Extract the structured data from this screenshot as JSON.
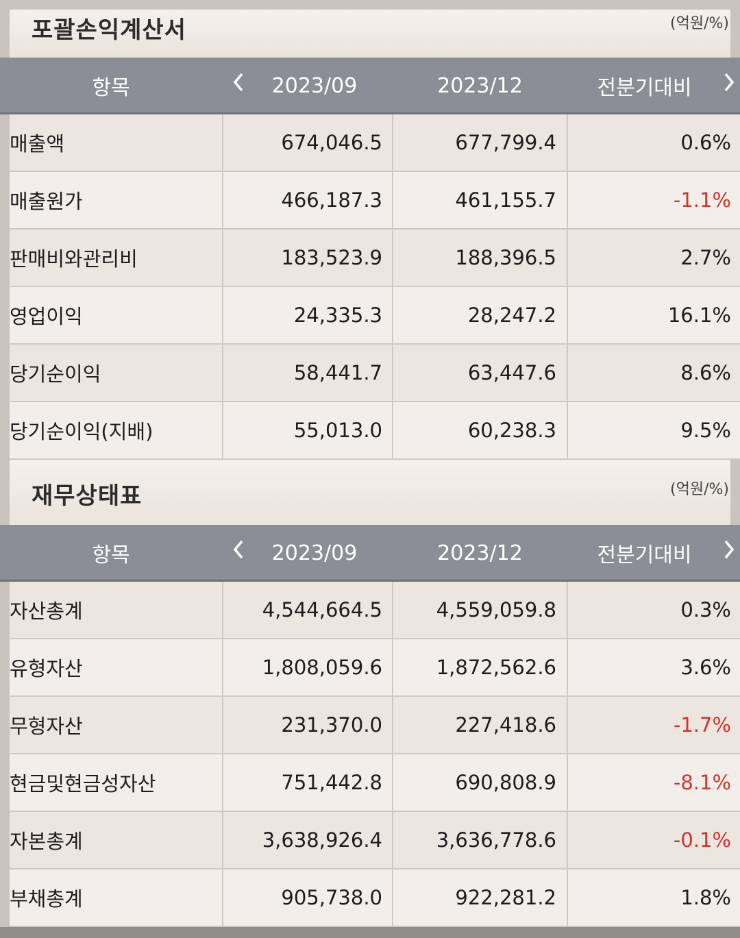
{
  "income": {
    "title": "포괄손익계산서",
    "unit": "(억원/%)",
    "headers": {
      "item": "항목",
      "p1": "2023/09",
      "p2": "2023/12",
      "cmp": "전분기대비"
    },
    "rows": [
      {
        "label": "매출액",
        "v1": "674,046.5",
        "v2": "677,799.4",
        "chg": "0.6%"
      },
      {
        "label": "매출원가",
        "v1": "466,187.3",
        "v2": "461,155.7",
        "chg": "-1.1%"
      },
      {
        "label": "판매비와관리비",
        "v1": "183,523.9",
        "v2": "188,396.5",
        "chg": "2.7%"
      },
      {
        "label": "영업이익",
        "v1": "24,335.3",
        "v2": "28,247.2",
        "chg": "16.1%"
      },
      {
        "label": "당기순이익",
        "v1": "58,441.7",
        "v2": "63,447.6",
        "chg": "8.6%"
      },
      {
        "label": "당기순이익(지배)",
        "v1": "55,013.0",
        "v2": "60,238.3",
        "chg": "9.5%"
      }
    ]
  },
  "balance": {
    "title": "재무상태표",
    "unit": "(억원/%)",
    "headers": {
      "item": "항목",
      "p1": "2023/09",
      "p2": "2023/12",
      "cmp": "전분기대비"
    },
    "rows": [
      {
        "label": "자산총계",
        "v1": "4,544,664.5",
        "v2": "4,559,059.8",
        "chg": "0.3%"
      },
      {
        "label": "유형자산",
        "v1": "1,808,059.6",
        "v2": "1,872,562.6",
        "chg": "3.6%"
      },
      {
        "label": "무형자산",
        "v1": "231,370.0",
        "v2": "227,418.6",
        "chg": "-1.7%"
      },
      {
        "label": "현금및현금성자산",
        "v1": "751,442.8",
        "v2": "690,808.9",
        "chg": "-8.1%"
      },
      {
        "label": "자본총계",
        "v1": "3,638,926.4",
        "v2": "3,636,778.6",
        "chg": "-0.1%"
      },
      {
        "label": "부채총계",
        "v1": "905,738.0",
        "v2": "922,281.2",
        "chg": "1.8%"
      }
    ]
  },
  "colors": {
    "negative": "#d3332f",
    "header_bg": "#8b8e96"
  }
}
